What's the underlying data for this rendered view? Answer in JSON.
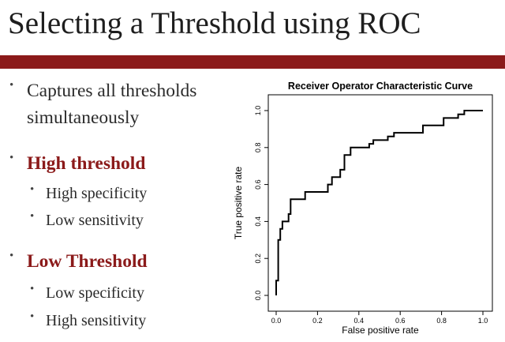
{
  "slide": {
    "title": "Selecting a Threshold using ROC",
    "accent_color": "#8b1a1a",
    "text_color": "#2b2b2b",
    "bullets": [
      {
        "text": "Captures all thresholds",
        "level": 1,
        "emphasis": false
      },
      {
        "text": "simultaneously",
        "level": 1,
        "emphasis": false,
        "continuation": true
      },
      {
        "text": "High threshold",
        "level": 1,
        "emphasis": true
      },
      {
        "text": "High specificity",
        "level": 2,
        "emphasis": false
      },
      {
        "text": "Low sensitivity",
        "level": 2,
        "emphasis": false
      },
      {
        "text": "Low Threshold",
        "level": 1,
        "emphasis": true
      },
      {
        "text": "Low specificity",
        "level": 2,
        "emphasis": false
      },
      {
        "text": "High sensitivity",
        "level": 2,
        "emphasis": false
      }
    ]
  },
  "chart_data": {
    "type": "line",
    "title": "Receiver Operator Characteristic Curve",
    "xlabel": "False positive rate",
    "ylabel": "True positive rate",
    "xlim": [
      0,
      1
    ],
    "ylim": [
      0,
      1
    ],
    "xticks": [
      "0.0",
      "0.2",
      "0.4",
      "0.6",
      "0.8",
      "1.0"
    ],
    "yticks": [
      "0.0",
      "0.2",
      "0.4",
      "0.6",
      "0.8",
      "1.0"
    ],
    "grid": false,
    "legend": "none",
    "line_color": "#000000",
    "step": true,
    "series": [
      {
        "x": [
          0.0,
          0.0,
          0.01,
          0.01,
          0.02,
          0.02,
          0.03,
          0.03,
          0.04,
          0.04,
          0.06,
          0.06,
          0.07,
          0.07,
          0.12,
          0.12,
          0.14,
          0.14,
          0.25,
          0.25,
          0.27,
          0.27,
          0.31,
          0.31,
          0.33,
          0.33,
          0.36,
          0.36,
          0.45,
          0.45,
          0.47,
          0.47,
          0.54,
          0.54,
          0.57,
          0.57,
          0.71,
          0.71,
          0.81,
          0.81,
          0.88,
          0.88,
          0.91,
          0.91,
          1.0
        ],
        "y": [
          0.0,
          0.08,
          0.08,
          0.3,
          0.3,
          0.36,
          0.36,
          0.4,
          0.4,
          0.4,
          0.4,
          0.44,
          0.44,
          0.52,
          0.52,
          0.52,
          0.52,
          0.56,
          0.56,
          0.6,
          0.6,
          0.64,
          0.64,
          0.68,
          0.68,
          0.76,
          0.76,
          0.8,
          0.8,
          0.82,
          0.82,
          0.84,
          0.84,
          0.86,
          0.86,
          0.88,
          0.88,
          0.92,
          0.92,
          0.96,
          0.96,
          0.98,
          0.98,
          1.0,
          1.0
        ]
      }
    ]
  }
}
